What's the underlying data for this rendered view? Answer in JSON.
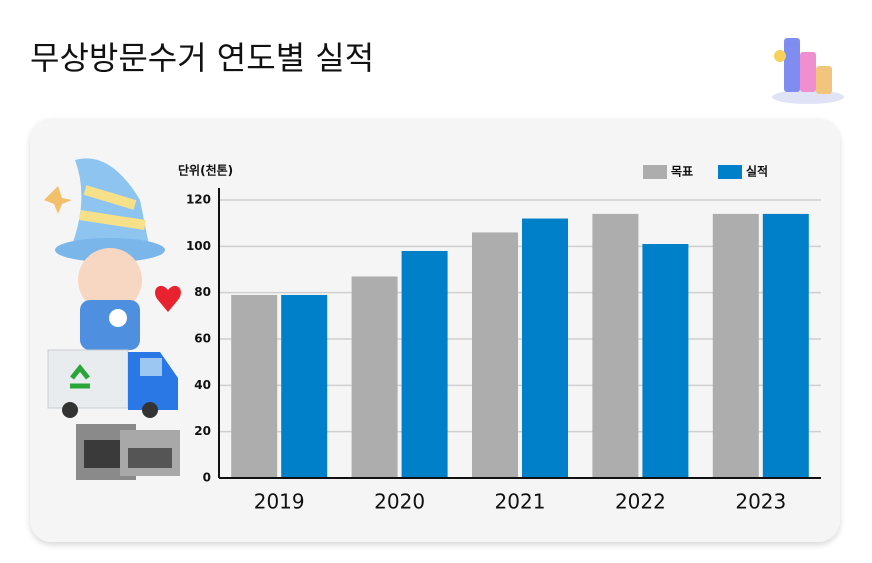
{
  "chart_data": {
    "type": "bar",
    "title": "무상방문수거 연도별 실적",
    "y_label": "단위(천톤)",
    "categories": [
      "2019",
      "2020",
      "2021",
      "2022",
      "2023"
    ],
    "series": [
      {
        "name": "목표",
        "color": "#adadad",
        "values": [
          79,
          87,
          106,
          114,
          114
        ]
      },
      {
        "name": "실적",
        "color": "#0080c8",
        "values": [
          79,
          98,
          112,
          101,
          114
        ]
      }
    ],
    "ylim": [
      0,
      120
    ],
    "yticks": [
      0,
      20,
      40,
      60,
      80,
      100,
      120
    ],
    "grid": true,
    "legend": "top-right"
  }
}
